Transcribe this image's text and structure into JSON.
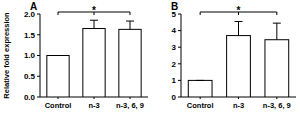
{
  "chart_data": [
    {
      "type": "bar",
      "title": "A",
      "y_label": "Relative fold expression",
      "categories": [
        "Control",
        "n-3",
        "n-3, 6, 9"
      ],
      "values": [
        1.0,
        1.65,
        1.63
      ],
      "errors": [
        0,
        0.2,
        0.2
      ],
      "color": "#ffffff",
      "annotations": [
        "*"
      ],
      "ylim": [
        0,
        2
      ],
      "yticks": [
        {
          "value": 0,
          "label": "0.0"
        },
        {
          "value": 0.5,
          "label": "0.5"
        },
        {
          "value": 1,
          "label": "1.0"
        },
        {
          "value": 1.5,
          "label": "1.5"
        },
        {
          "value": 2,
          "label": "2.0"
        }
      ]
    },
    {
      "type": "bar",
      "title": "B",
      "categories": [
        "Control",
        "n-3",
        "n-3, 6, 9"
      ],
      "values": [
        1.0,
        3.7,
        3.45
      ],
      "errors": [
        0,
        0.85,
        1.0
      ],
      "color": "#ffffff",
      "annotations": [
        "*"
      ],
      "ylim": [
        0,
        5
      ],
      "yticks": [
        0,
        1,
        2,
        3,
        4,
        5
      ]
    }
  ]
}
